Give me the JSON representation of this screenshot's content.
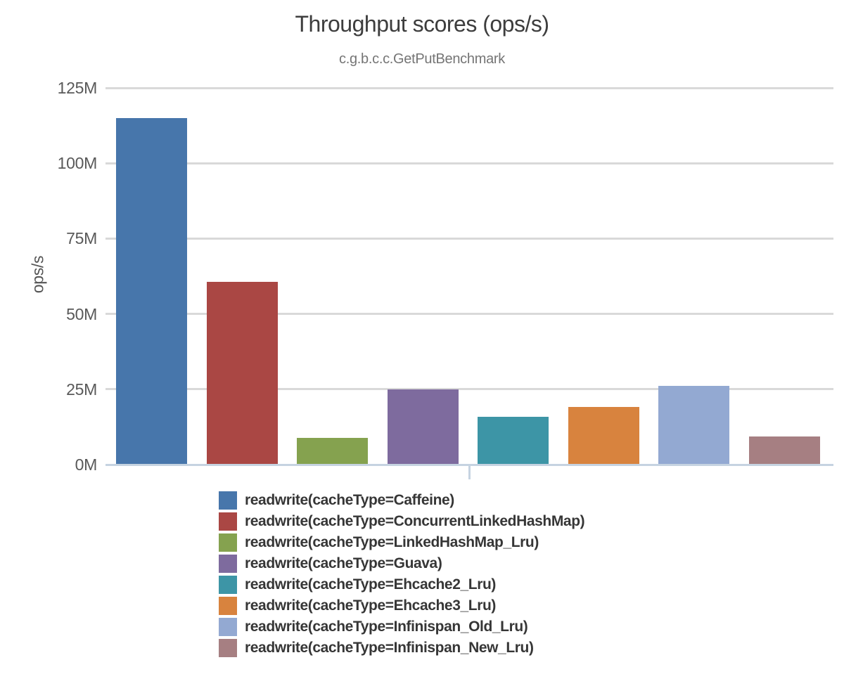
{
  "page": {
    "title": "Throughput scores (ops/s)",
    "subtitle": "c.g.b.c.c.GetPutBenchmark"
  },
  "chart_data": {
    "type": "bar",
    "title": "Throughput scores (ops/s)",
    "subtitle": "c.g.b.c.c.GetPutBenchmark",
    "xlabel": "",
    "ylabel": "ops/s",
    "unit": "ops/s",
    "ylim": [
      0,
      125000000
    ],
    "grid": true,
    "legend_position": "bottom",
    "ytick_values_m": [
      0,
      25,
      50,
      75,
      100,
      125
    ],
    "ytick_labels": [
      "0M",
      "25M",
      "50M",
      "75M",
      "100M",
      "125M"
    ],
    "axis_colors": {
      "gridline": "#d9d9d9",
      "baseline": "#c6d3e1",
      "tick_label": "#595959"
    },
    "series": [
      {
        "label": "readwrite(cacheType=Caffeine)",
        "value_ops_s": 115000000,
        "value_m": 115.0,
        "color": "#4776ab"
      },
      {
        "label": "readwrite(cacheType=ConcurrentLinkedHashMap)",
        "value_ops_s": 60700000,
        "value_m": 60.7,
        "color": "#aa4744"
      },
      {
        "label": "readwrite(cacheType=LinkedHashMap_Lru)",
        "value_ops_s": 8900000,
        "value_m": 8.9,
        "color": "#85a24f"
      },
      {
        "label": "readwrite(cacheType=Guava)",
        "value_ops_s": 25000000,
        "value_m": 25.0,
        "color": "#7e6b9e"
      },
      {
        "label": "readwrite(cacheType=Ehcache2_Lru)",
        "value_ops_s": 15900000,
        "value_m": 15.9,
        "color": "#3d95a6"
      },
      {
        "label": "readwrite(cacheType=Ehcache3_Lru)",
        "value_ops_s": 19100000,
        "value_m": 19.1,
        "color": "#d8833e"
      },
      {
        "label": "readwrite(cacheType=Infinispan_Old_Lru)",
        "value_ops_s": 26200000,
        "value_m": 26.2,
        "color": "#93a9d2"
      },
      {
        "label": "readwrite(cacheType=Infinispan_New_Lru)",
        "value_ops_s": 9300000,
        "value_m": 9.3,
        "color": "#a67f82"
      }
    ]
  }
}
